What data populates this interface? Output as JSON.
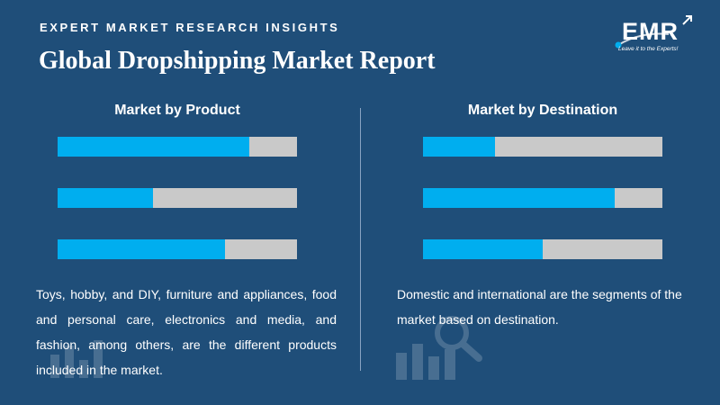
{
  "header": {
    "eyebrow": "EXPERT MARKET RESEARCH INSIGHTS",
    "title": "Global Dropshipping Market Report"
  },
  "logo": {
    "text": "EMR",
    "tagline": "Leave it to the Experts!"
  },
  "left_panel": {
    "heading": "Market by Product",
    "bars": [
      {
        "fill_percent": 80
      },
      {
        "fill_percent": 40
      },
      {
        "fill_percent": 70
      }
    ],
    "description": "Toys, hobby, and DIY, furniture and appliances, food and personal care, electronics and media, and fashion, among others, are the different products included in the market."
  },
  "right_panel": {
    "heading": "Market by Destination",
    "bars": [
      {
        "fill_percent": 30
      },
      {
        "fill_percent": 80
      },
      {
        "fill_percent": 50
      }
    ],
    "description": "Domestic and international are the segments of the market based on destination."
  },
  "colors": {
    "background": "#1f4e79",
    "bar_fill": "#00aeef",
    "bar_track": "#c9c9c9"
  }
}
